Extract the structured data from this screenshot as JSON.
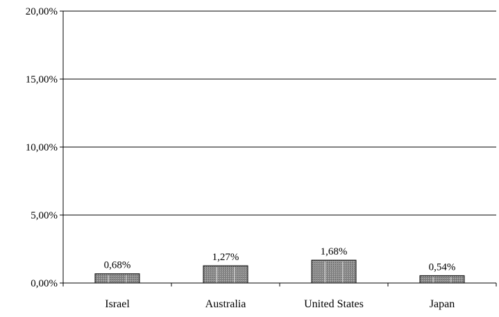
{
  "chart_data": {
    "type": "bar",
    "categories": [
      "Israel",
      "Australia",
      "United States",
      "Japan"
    ],
    "values": [
      0.68,
      1.27,
      1.68,
      0.54
    ],
    "data_labels": [
      "0,68%",
      "1,27%",
      "1,68%",
      "0,54%"
    ],
    "ylim": [
      0,
      20
    ],
    "yticks": [
      0,
      5,
      10,
      15,
      20
    ],
    "ytick_labels": [
      "0,00%",
      "5,00%",
      "10,00%",
      "15,00%",
      "20,00%"
    ],
    "title": "",
    "xlabel": "",
    "ylabel": "",
    "grid": true,
    "legend": "none",
    "bar_fill": "#8c8c8c",
    "bar_stroke": "#000000",
    "gridline_color": "#000000"
  }
}
